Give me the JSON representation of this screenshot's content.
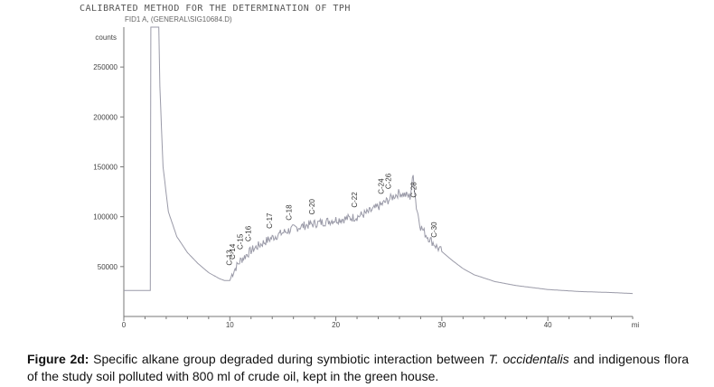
{
  "header": {
    "method_title": "CALIBRATED METHOD FOR THE DETERMINATION OF TPH",
    "signal_label": "FID1 A, (GENERAL\\SIG10684.D)"
  },
  "caption": {
    "label": "Figure 2d:",
    "text_before": "Specific alkane group degraded during symbiotic interaction between",
    "species": "T. occidentalis",
    "text_after": "and indigenous flora of the study soil polluted with 800 ml of crude oil, kept in the green house."
  },
  "chart_data": {
    "type": "line",
    "title": "CALIBRATED METHOD FOR THE DETERMINATION OF TPH",
    "subtitle": "FID1 A, (GENERAL\\SIG10684.D)",
    "ylabel": "counts",
    "xlabel": "mi",
    "xlim": [
      0,
      48
    ],
    "ylim": [
      0,
      290000
    ],
    "x_ticks": [
      0,
      10,
      20,
      30,
      40
    ],
    "y_ticks": [
      50000,
      100000,
      150000,
      200000,
      250000
    ],
    "x_tick_labels": [
      "0",
      "10",
      "20",
      "30",
      "40"
    ],
    "y_tick_labels": [
      "50000",
      "100000",
      "150000",
      "200000",
      "250000"
    ],
    "grid": false,
    "series": [
      {
        "color": "#9a9aa8",
        "x": [
          0,
          2.5,
          2.55,
          3.3,
          3.4,
          3.7,
          4.2,
          5,
          6,
          7,
          8,
          9,
          9.5,
          10,
          10.2,
          10.5,
          11,
          12,
          13,
          14,
          15,
          16,
          17,
          18,
          19,
          20,
          21,
          22,
          23,
          24,
          25,
          25.5,
          26,
          26.5,
          27,
          27.3,
          27.6,
          28,
          28.5,
          29,
          29.5,
          30,
          31,
          32,
          33,
          35,
          37,
          40,
          43,
          46,
          48
        ],
        "y": [
          26000,
          26000,
          290000,
          290000,
          230000,
          150000,
          105000,
          80000,
          64000,
          53000,
          44000,
          38000,
          36000,
          36000,
          42000,
          48000,
          56000,
          66000,
          73000,
          79000,
          84000,
          88000,
          91000,
          93000,
          95000,
          97000,
          98000,
          100000,
          104000,
          110000,
          117000,
          121000,
          124000,
          122000,
          120000,
          141000,
          110000,
          90000,
          82000,
          76000,
          70000,
          65000,
          56000,
          48000,
          42000,
          35000,
          31000,
          27000,
          25000,
          24000,
          23000
        ]
      }
    ],
    "peaks": [
      {
        "label": "C-13",
        "x": 10.2
      },
      {
        "label": "C-14",
        "x": 10.5
      },
      {
        "label": "C-15",
        "x": 11.2
      },
      {
        "label": "C-16",
        "x": 12.0
      },
      {
        "label": "C-17",
        "x": 14.0
      },
      {
        "label": "C-18",
        "x": 15.8
      },
      {
        "label": "C-20",
        "x": 18.0
      },
      {
        "label": "C-22",
        "x": 22.0
      },
      {
        "label": "C-24",
        "x": 24.5
      },
      {
        "label": "C-26",
        "x": 25.2
      },
      {
        "label": "C-28",
        "x": 27.6
      },
      {
        "label": "C-30",
        "x": 29.5
      }
    ]
  }
}
